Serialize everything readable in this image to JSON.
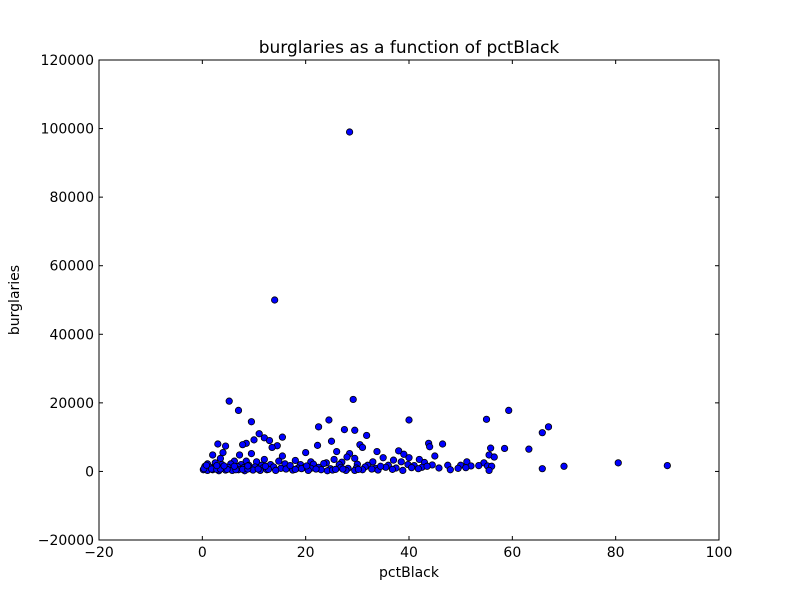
{
  "chart_data": {
    "type": "scatter",
    "title": "burglaries as a function of pctBlack",
    "xlabel": "pctBlack",
    "ylabel": "burglaries",
    "xlim": [
      -20,
      100
    ],
    "ylim": [
      -20000,
      120000
    ],
    "xticks": [
      -20,
      0,
      20,
      40,
      60,
      80,
      100
    ],
    "yticks": [
      -20000,
      0,
      20000,
      40000,
      60000,
      80000,
      100000,
      120000
    ],
    "xtick_labels": [
      "−20",
      "0",
      "20",
      "40",
      "60",
      "80",
      "100"
    ],
    "ytick_labels": [
      "−20000",
      "0",
      "20000",
      "40000",
      "60000",
      "80000",
      "100000",
      "120000"
    ],
    "grid": false,
    "marker_color": "#0000ff",
    "marker_edge": "#000000",
    "points": [
      [
        28.5,
        99000
      ],
      [
        14,
        50000
      ],
      [
        5.2,
        20500
      ],
      [
        29.2,
        21000
      ],
      [
        7,
        17800
      ],
      [
        59.3,
        17800
      ],
      [
        9.5,
        14500
      ],
      [
        24.5,
        15000
      ],
      [
        40,
        15000
      ],
      [
        55,
        15200
      ],
      [
        22.5,
        13000
      ],
      [
        67,
        13000
      ],
      [
        27.5,
        12200
      ],
      [
        29.5,
        12000
      ],
      [
        65.8,
        11300
      ],
      [
        11,
        11000
      ],
      [
        31.8,
        10500
      ],
      [
        12,
        9800
      ],
      [
        15.5,
        10000
      ],
      [
        10,
        9200
      ],
      [
        13,
        9000
      ],
      [
        25,
        8800
      ],
      [
        3,
        8000
      ],
      [
        8.5,
        8200
      ],
      [
        7.8,
        7800
      ],
      [
        22.3,
        7600
      ],
      [
        43.8,
        8200
      ],
      [
        46.5,
        8000
      ],
      [
        4.5,
        7400
      ],
      [
        14.5,
        7500
      ],
      [
        13.5,
        7000
      ],
      [
        30.5,
        7800
      ],
      [
        31,
        7000
      ],
      [
        44,
        7200
      ],
      [
        55.8,
        6800
      ],
      [
        58.5,
        6700
      ],
      [
        63.2,
        6500
      ],
      [
        38,
        6000
      ],
      [
        26,
        5800
      ],
      [
        20,
        5500
      ],
      [
        4,
        5500
      ],
      [
        9.5,
        5200
      ],
      [
        28.5,
        5200
      ],
      [
        33.8,
        5800
      ],
      [
        39,
        5000
      ],
      [
        2,
        4800
      ],
      [
        7.2,
        4800
      ],
      [
        15.5,
        4500
      ],
      [
        28,
        4200
      ],
      [
        35,
        4000
      ],
      [
        45,
        4500
      ],
      [
        40,
        4000
      ],
      [
        55.5,
        4800
      ],
      [
        56.5,
        4200
      ],
      [
        3.5,
        3800
      ],
      [
        12,
        3500
      ],
      [
        18,
        3200
      ],
      [
        25.5,
        3500
      ],
      [
        29.5,
        3800
      ],
      [
        37,
        3300
      ],
      [
        42,
        3500
      ],
      [
        6.2,
        3000
      ],
      [
        8.5,
        3000
      ],
      [
        10.5,
        2800
      ],
      [
        14.8,
        3000
      ],
      [
        21,
        2800
      ],
      [
        24,
        2500
      ],
      [
        27,
        2700
      ],
      [
        33,
        2800
      ],
      [
        38.5,
        2800
      ],
      [
        43,
        2600
      ],
      [
        51.2,
        2800
      ],
      [
        54.5,
        2500
      ],
      [
        80.5,
        2500
      ],
      [
        1,
        2200
      ],
      [
        2.5,
        2500
      ],
      [
        3.8,
        2000
      ],
      [
        5.5,
        2200
      ],
      [
        7.5,
        2000
      ],
      [
        9,
        1800
      ],
      [
        11.5,
        1800
      ],
      [
        13.2,
        2000
      ],
      [
        16,
        2200
      ],
      [
        19,
        2000
      ],
      [
        21.5,
        2100
      ],
      [
        23.5,
        2300
      ],
      [
        26.5,
        2000
      ],
      [
        30,
        2100
      ],
      [
        32,
        1800
      ],
      [
        36,
        1800
      ],
      [
        39.8,
        2000
      ],
      [
        41,
        1700
      ],
      [
        44.5,
        1900
      ],
      [
        47.5,
        1800
      ],
      [
        50,
        1800
      ],
      [
        52,
        1600
      ],
      [
        53.5,
        1700
      ],
      [
        55.2,
        1600
      ],
      [
        56,
        1500
      ],
      [
        70,
        1500
      ],
      [
        90,
        1700
      ],
      [
        0.5,
        1500
      ],
      [
        1.5,
        1200
      ],
      [
        2.2,
        1000
      ],
      [
        3,
        1300
      ],
      [
        4.2,
        900
      ],
      [
        5,
        1200
      ],
      [
        6,
        800
      ],
      [
        6.8,
        1400
      ],
      [
        8,
        1100
      ],
      [
        9.2,
        900
      ],
      [
        10.2,
        1300
      ],
      [
        11.8,
        1100
      ],
      [
        13.8,
        1300
      ],
      [
        15.2,
        900
      ],
      [
        16.8,
        1200
      ],
      [
        18.5,
        1000
      ],
      [
        19.8,
        1200
      ],
      [
        21,
        900
      ],
      [
        22.5,
        1200
      ],
      [
        24.8,
        800
      ],
      [
        26.8,
        1200
      ],
      [
        28.2,
        900
      ],
      [
        29.8,
        1000
      ],
      [
        31.5,
        1300
      ],
      [
        33.5,
        900
      ],
      [
        35.5,
        1200
      ],
      [
        37.5,
        1000
      ],
      [
        40.5,
        1100
      ],
      [
        42.5,
        1200
      ],
      [
        45.8,
        1000
      ],
      [
        49.5,
        900
      ],
      [
        51,
        1100
      ],
      [
        65.8,
        800
      ],
      [
        0.2,
        500
      ],
      [
        1,
        300
      ],
      [
        2,
        500
      ],
      [
        3.2,
        200
      ],
      [
        4.5,
        400
      ],
      [
        5.8,
        300
      ],
      [
        7,
        500
      ],
      [
        8.2,
        200
      ],
      [
        9.8,
        400
      ],
      [
        11.2,
        300
      ],
      [
        12.5,
        500
      ],
      [
        14.2,
        300
      ],
      [
        17.5,
        400
      ],
      [
        20.5,
        300
      ],
      [
        23,
        500
      ],
      [
        24.2,
        200
      ],
      [
        25.2,
        400
      ],
      [
        27.8,
        300
      ],
      [
        29.5,
        300
      ],
      [
        31,
        500
      ],
      [
        34,
        400
      ],
      [
        38.8,
        300
      ],
      [
        48,
        500
      ],
      [
        55.5,
        300
      ],
      [
        0.3,
        800
      ],
      [
        1.8,
        700
      ],
      [
        2.8,
        600
      ],
      [
        3.5,
        700
      ],
      [
        4.8,
        600
      ],
      [
        6.5,
        500
      ],
      [
        7.8,
        600
      ],
      [
        8.8,
        700
      ],
      [
        10.8,
        700
      ],
      [
        12.8,
        600
      ],
      [
        16.2,
        700
      ],
      [
        18,
        600
      ],
      [
        19.2,
        800
      ],
      [
        22,
        700
      ],
      [
        25.8,
        600
      ],
      [
        27.2,
        700
      ],
      [
        30.2,
        600
      ],
      [
        32.8,
        700
      ],
      [
        36.8,
        600
      ],
      [
        41.8,
        800
      ],
      [
        0.8,
        1800
      ],
      [
        2.8,
        1700
      ],
      [
        4.2,
        1600
      ],
      [
        6.2,
        1500
      ],
      [
        8.8,
        1600
      ],
      [
        12.2,
        1500
      ],
      [
        17,
        1700
      ],
      [
        20.2,
        1600
      ],
      [
        34.5,
        1500
      ],
      [
        43.5,
        1500
      ]
    ]
  }
}
